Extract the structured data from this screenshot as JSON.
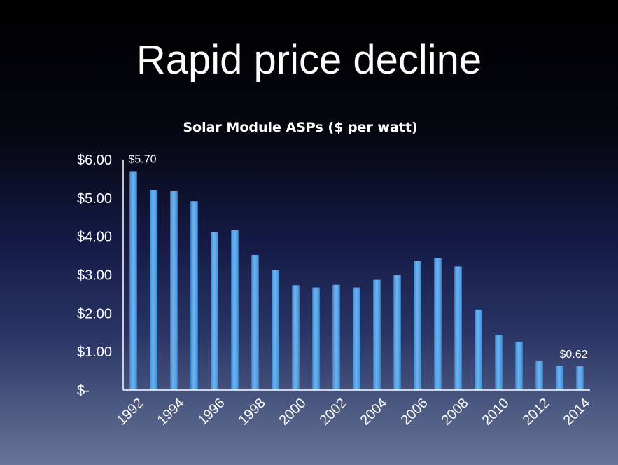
{
  "slide": {
    "title": "Rapid price decline"
  },
  "chart_data": {
    "type": "bar",
    "title": "Solar Module ASPs ($ per watt)",
    "xlabel": "",
    "ylabel": "",
    "categories": [
      "1992",
      "1993",
      "1994",
      "1995",
      "1996",
      "1997",
      "1998",
      "1999",
      "2000",
      "2001",
      "2002",
      "2003",
      "2004",
      "2005",
      "2006",
      "2007",
      "2008",
      "2009",
      "2010",
      "2011",
      "2012",
      "2013",
      "2014"
    ],
    "x_tick_labels": [
      "1992",
      "1994",
      "1996",
      "1998",
      "2000",
      "2002",
      "2004",
      "2006",
      "2008",
      "2010",
      "2012",
      "2014"
    ],
    "values": [
      5.7,
      5.2,
      5.18,
      4.92,
      4.12,
      4.16,
      3.52,
      3.12,
      2.73,
      2.67,
      2.74,
      2.67,
      2.87,
      2.99,
      3.36,
      3.44,
      3.22,
      2.1,
      1.44,
      1.26,
      0.76,
      0.64,
      0.62
    ],
    "ylim": [
      0,
      6
    ],
    "y_tick_labels": [
      "$-",
      "$1.00",
      "$2.00",
      "$3.00",
      "$4.00",
      "$5.00",
      "$6.00"
    ],
    "data_labels": [
      {
        "category": "1992",
        "text": "$5.70"
      },
      {
        "category": "2014",
        "text": "$0.62"
      }
    ],
    "grid": false,
    "colors": {
      "bar": "#3f8fd8",
      "bar_light": "#6fb3ef",
      "axis": "#ffffff",
      "text": "#ffffff"
    }
  }
}
